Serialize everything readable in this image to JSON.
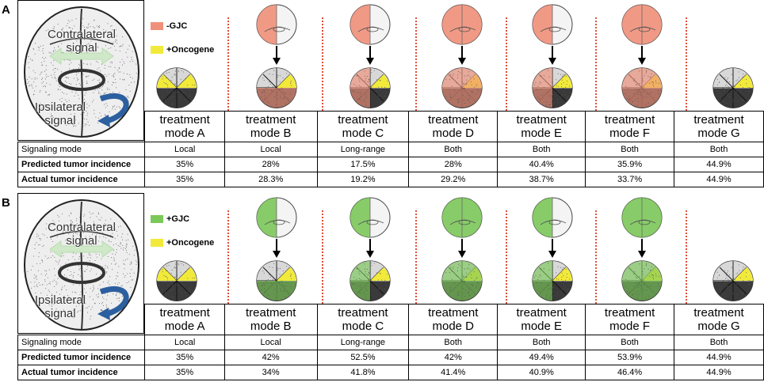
{
  "colors": {
    "gjc_minus": "#f0907a",
    "gjc_plus": "#7cc85a",
    "oncogene": "#f2ea3a",
    "dotted": "#e0503a"
  },
  "panels": [
    {
      "label": "A",
      "legend": {
        "gjc": "-GJC",
        "oncogene": "+Oncogene"
      },
      "embryo": {
        "contralateral": "Contralateral signal",
        "ipsilateral": "Ipsilateral signal"
      },
      "modes": [
        "treatment mode A",
        "treatment mode B",
        "treatment mode C",
        "treatment mode D",
        "treatment mode E",
        "treatment mode F",
        "treatment mode G"
      ],
      "rows": [
        {
          "label": "Signaling mode",
          "values": [
            "Local",
            "Local",
            "Long-range",
            "Both",
            "Both",
            "Both",
            "Both"
          ]
        },
        {
          "label": "Predicted tumor incidence",
          "values": [
            "35%",
            "28%",
            "17.5%",
            "28%",
            "40.4%",
            "35.9%",
            "44.9%"
          ]
        },
        {
          "label": "Actual tumor incidence",
          "values": [
            "35%",
            "28.3%",
            "19.2%",
            "29.2%",
            "38.7%",
            "33.7%",
            "44.9%"
          ]
        }
      ]
    },
    {
      "label": "B",
      "legend": {
        "gjc": "+GJC",
        "oncogene": "+Oncogene"
      },
      "embryo": {
        "contralateral": "Contralateral signal",
        "ipsilateral": "Ipsilateral signal"
      },
      "modes": [
        "treatment mode A",
        "treatment mode B",
        "treatment mode C",
        "treatment mode D",
        "treatment mode E",
        "treatment mode F",
        "treatment mode G"
      ],
      "rows": [
        {
          "label": "Signaling mode",
          "values": [
            "Local",
            "Local",
            "Long-range",
            "Both",
            "Both",
            "Both",
            "Both"
          ]
        },
        {
          "label": "Predicted tumor incidence",
          "values": [
            "35%",
            "42%",
            "52.5%",
            "42%",
            "49.4%",
            "53.9%",
            "44.9%"
          ]
        },
        {
          "label": "Actual tumor incidence",
          "values": [
            "35%",
            "34%",
            "41.8%",
            "41.4%",
            "40.9%",
            "46.4%",
            "44.9%"
          ]
        }
      ]
    }
  ]
}
